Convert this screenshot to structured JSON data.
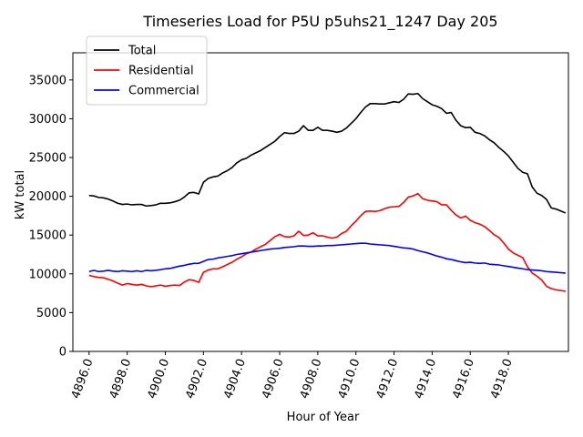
{
  "chart_data": {
    "type": "line",
    "title": "Timeseries Load for P5U p5uhs21_1247  Day 205",
    "xlabel": "Hour of Year",
    "ylabel": "kW total",
    "xlim": [
      4895.15,
      4921.15
    ],
    "ylim": [
      0,
      38500
    ],
    "xticks": [
      4896,
      4898,
      4900,
      4902,
      4904,
      4906,
      4908,
      4910,
      4912,
      4914,
      4916,
      4918
    ],
    "xtick_labels": [
      "4896.0",
      "4898.0",
      "4900.0",
      "4902.0",
      "4904.0",
      "4906.0",
      "4908.0",
      "4910.0",
      "4912.0",
      "4914.0",
      "4916.0",
      "4918.0"
    ],
    "yticks": [
      0,
      5000,
      10000,
      15000,
      20000,
      25000,
      30000,
      35000
    ],
    "ytick_labels": [
      "0",
      "5000",
      "10000",
      "15000",
      "20000",
      "25000",
      "30000",
      "35000"
    ],
    "x_start": 4896,
    "x_step": 0.25,
    "legend_position": "upper-left",
    "series": [
      {
        "name": "Total",
        "color": "#000000",
        "values": [
          20100,
          20050,
          19850,
          19800,
          19650,
          19400,
          19100,
          18950,
          19000,
          18900,
          18950,
          18950,
          18750,
          18800,
          18900,
          19100,
          19100,
          19150,
          19300,
          19500,
          19900,
          20450,
          20500,
          20300,
          21800,
          22300,
          22500,
          22600,
          23000,
          23300,
          23700,
          24300,
          24700,
          24900,
          25300,
          25600,
          25900,
          26300,
          26700,
          27100,
          27700,
          28200,
          28100,
          28100,
          28400,
          29100,
          28500,
          28500,
          28900,
          28500,
          28500,
          28400,
          28250,
          28400,
          28800,
          29400,
          30000,
          30800,
          31500,
          31950,
          31950,
          31900,
          31900,
          32050,
          32200,
          32100,
          32500,
          33200,
          33150,
          33250,
          32600,
          32200,
          31800,
          31600,
          31300,
          30700,
          30800,
          29800,
          29100,
          28850,
          28900,
          28250,
          28100,
          27800,
          27300,
          26900,
          26300,
          25800,
          25200,
          24400,
          23600,
          23100,
          22900,
          21200,
          20400,
          20100,
          19600,
          18500,
          18350,
          18100,
          17850
        ]
      },
      {
        "name": "Residential",
        "color": "#ff0000",
        "values": [
          9800,
          9650,
          9550,
          9500,
          9300,
          9100,
          8800,
          8550,
          8750,
          8650,
          8550,
          8650,
          8450,
          8350,
          8450,
          8550,
          8400,
          8500,
          8550,
          8500,
          8950,
          9250,
          9150,
          8900,
          10200,
          10500,
          10650,
          10650,
          10900,
          11200,
          11500,
          11900,
          12200,
          12600,
          12800,
          13200,
          13500,
          13800,
          14300,
          14800,
          15100,
          14800,
          14750,
          14900,
          15500,
          14950,
          15000,
          15300,
          14900,
          14900,
          14750,
          14600,
          14750,
          15200,
          15500,
          16200,
          16800,
          17500,
          18050,
          18100,
          18050,
          18150,
          18400,
          18600,
          18650,
          18700,
          19200,
          19900,
          20050,
          20350,
          19700,
          19500,
          19400,
          19300,
          18900,
          18900,
          18200,
          17600,
          17200,
          17450,
          16900,
          16600,
          16400,
          16100,
          15600,
          15050,
          14700,
          14000,
          13200,
          12700,
          12400,
          12100,
          10900,
          10100,
          9700,
          9200,
          8400,
          8100,
          7950,
          7850,
          7750
        ]
      },
      {
        "name": "Commercial",
        "color": "#0000ff",
        "values": [
          10300,
          10450,
          10300,
          10350,
          10450,
          10350,
          10300,
          10400,
          10350,
          10300,
          10400,
          10300,
          10450,
          10400,
          10450,
          10550,
          10650,
          10700,
          10850,
          11000,
          11100,
          11250,
          11350,
          11350,
          11600,
          11850,
          11900,
          12050,
          12150,
          12250,
          12350,
          12500,
          12600,
          12700,
          12800,
          12900,
          13000,
          13100,
          13200,
          13250,
          13300,
          13400,
          13450,
          13500,
          13600,
          13600,
          13550,
          13550,
          13600,
          13600,
          13650,
          13650,
          13700,
          13750,
          13800,
          13850,
          13900,
          13950,
          13950,
          13850,
          13800,
          13750,
          13700,
          13650,
          13550,
          13450,
          13350,
          13300,
          13200,
          13000,
          12850,
          12700,
          12500,
          12300,
          12150,
          11950,
          11850,
          11700,
          11550,
          11450,
          11500,
          11400,
          11350,
          11400,
          11250,
          11200,
          11150,
          11050,
          10950,
          10850,
          10750,
          10650,
          10550,
          10500,
          10450,
          10400,
          10300,
          10250,
          10200,
          10150,
          10100
        ]
      }
    ]
  }
}
